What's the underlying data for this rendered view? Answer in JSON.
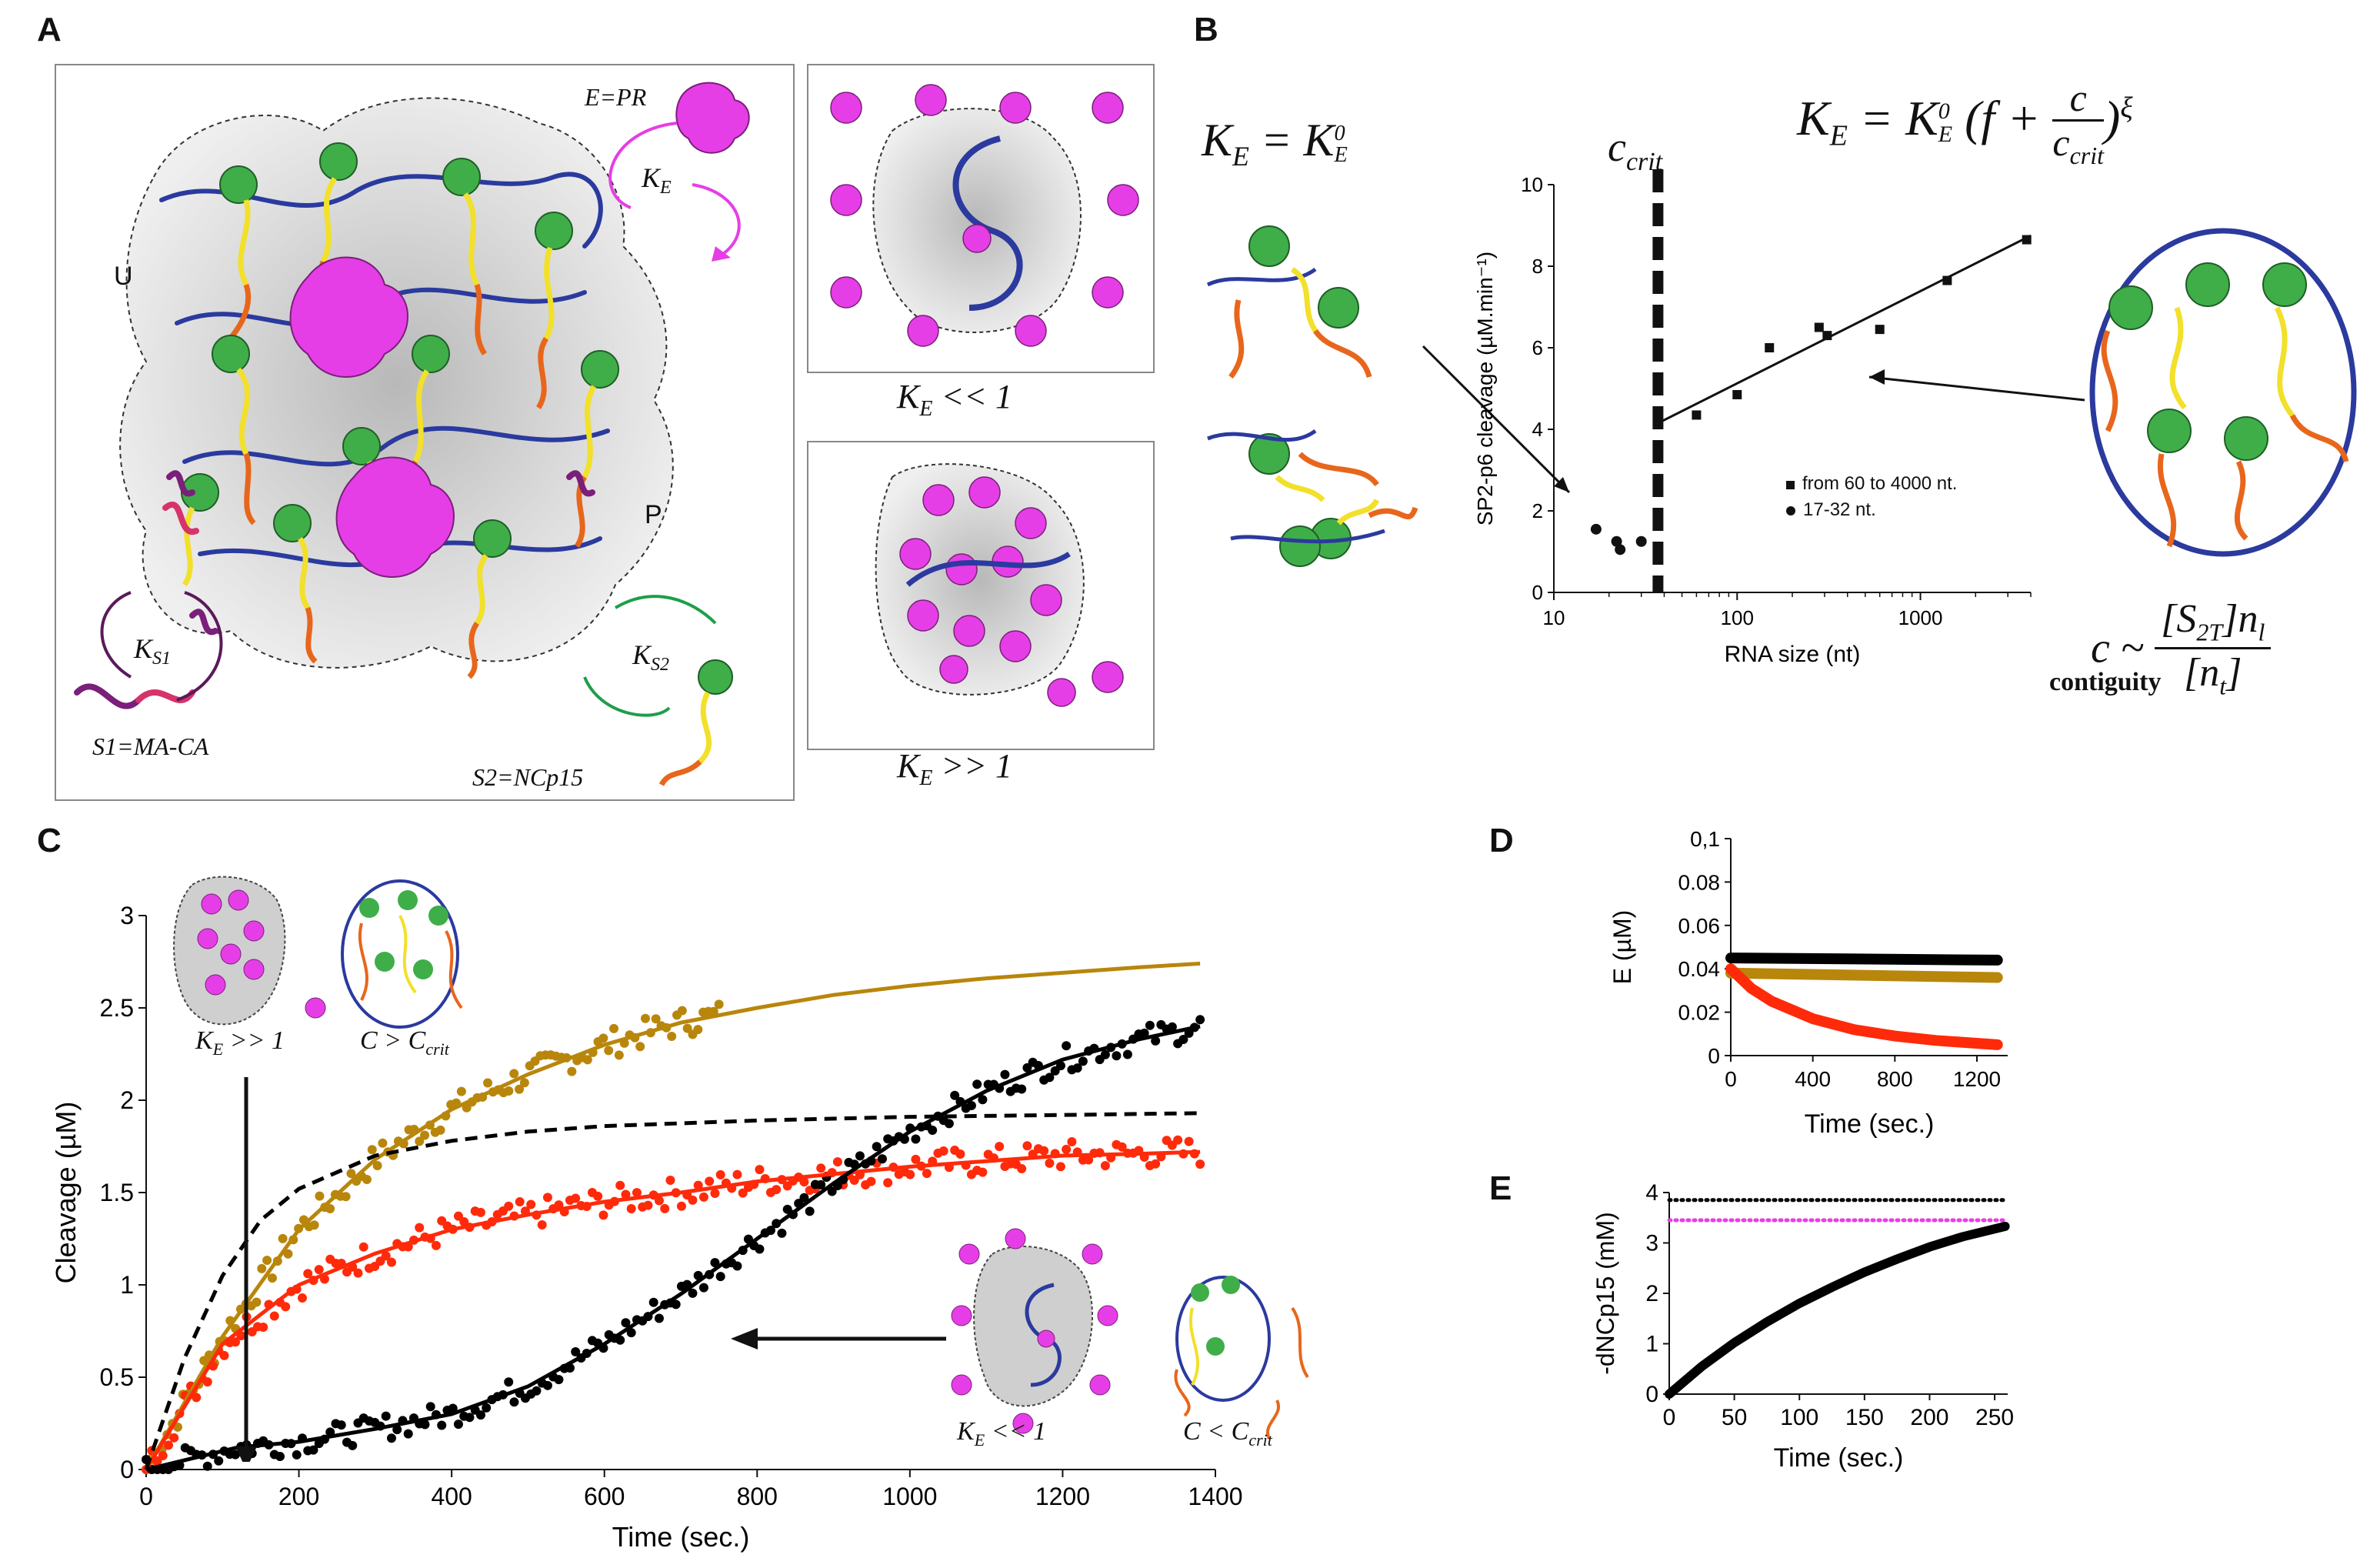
{
  "panels": {
    "A": "A",
    "B": "B",
    "C": "C",
    "D": "D",
    "E": "E"
  },
  "colors": {
    "magenta": "#e63ee6",
    "green": "#3fae49",
    "blue": "#2b3a9e",
    "orange": "#e8661c",
    "yellow": "#f2e02a",
    "purple": "#7a1f7a",
    "gold": "#b8860b",
    "red": "#ff2a0a",
    "black": "#000000",
    "gray": "#d9d9d9"
  },
  "panelA": {
    "state_U": "U",
    "state_P": "P",
    "enzyme_label": "E=PR",
    "ke_label": "K",
    "ke_sub": "E",
    "ks1_label": "K",
    "ks1_sub": "S1",
    "ks2_label": "K",
    "ks2_sub": "S2",
    "s1_label": "S1=MA-CA",
    "s2_label": "S2=NCp15",
    "ke_small_k": "K",
    "ke_small_sub": "E",
    "ke_small_rel": "<< 1",
    "ke_big_k": "K",
    "ke_big_sub": "E",
    "ke_big_rel": ">> 1"
  },
  "panelB": {
    "eq_left_lhs": "K",
    "eq_left_lhs_sub": "E",
    "eq_left_rhs": "= K",
    "eq_left_rhs_sup": "0",
    "eq_left_rhs_sub": "E",
    "eq_right": "K",
    "eq_right_sub": "E",
    "eq_right_rhs": "= K",
    "eq_right_sup": "0",
    "eq_right_rsub": "E",
    "eq_right_paren": "(f +",
    "eq_right_num": "c",
    "eq_right_den": "c",
    "eq_right_den_sub": "crit",
    "eq_right_close": ")",
    "eq_right_exp": "ξ",
    "ccrit": "c",
    "ccrit_sub": "crit",
    "contig_lhs": "c ~",
    "contig_num": "[S",
    "contig_num_sub": "2T",
    "contig_num_rest": "]n",
    "contig_num_sub2": "l",
    "contig_den": "[n",
    "contig_den_sub": "t",
    "contig_den_close": "]",
    "contig_word": "contiguity",
    "ylabel": "SP2-p6 cleavage (µM.min⁻¹)",
    "xlabel": "RNA size (nt)",
    "legend_sq": "from 60 to 4000 nt.",
    "legend_dot": "17-32 nt."
  },
  "panelC": {
    "ylabel": "Cleavage (µM)",
    "xlabel": "Time (sec.)",
    "ke_big_k": "K",
    "ke_big_sub": "E",
    "ke_big_rel": ">> 1",
    "c_big": "C > C",
    "c_big_sub": "crit",
    "ke_small_k": "K",
    "ke_small_sub": "E",
    "ke_small_rel": "<< 1",
    "c_small": "C < C",
    "c_small_sub": "crit"
  },
  "panelD": {
    "ylabel": "E (µM)",
    "xlabel": "Time (sec.)"
  },
  "panelE": {
    "ylabel": "-dNCp15 (mM)",
    "xlabel": "Time (sec.)"
  },
  "chart_data": [
    {
      "id": "B",
      "type": "scatter",
      "xscale": "log",
      "xlim": [
        10,
        4000
      ],
      "ylim": [
        0,
        10
      ],
      "xticks": [
        10,
        100,
        1000
      ],
      "xtick_labels": [
        "10",
        "100",
        "1000"
      ],
      "yticks": [
        0,
        2,
        4,
        6,
        8,
        10
      ],
      "ytick_labels": [
        "0",
        "2",
        "4",
        "6",
        "8",
        "10"
      ],
      "xlabel": "RNA size (nt)",
      "ylabel": "SP2-p6 cleavage (µM.min⁻¹)",
      "series": [
        {
          "name": "from 60 to 4000 nt.",
          "marker": "square",
          "x": [
            60,
            100,
            150,
            280,
            310,
            600,
            1400,
            3800
          ],
          "y": [
            4.35,
            4.85,
            6.0,
            6.5,
            6.3,
            6.45,
            7.65,
            8.65
          ]
        },
        {
          "name": "17-32 nt.",
          "marker": "circle",
          "x": [
            17,
            22,
            23,
            30
          ],
          "y": [
            1.55,
            1.25,
            1.05,
            1.25
          ]
        }
      ],
      "fit_line": {
        "x": [
          37,
          4000
        ],
        "y": [
          4.15,
          8.75
        ]
      },
      "ccrit_x": 37
    },
    {
      "id": "C",
      "type": "line",
      "xlim": [
        0,
        1400
      ],
      "ylim": [
        0,
        3
      ],
      "xticks": [
        0,
        200,
        400,
        600,
        800,
        1000,
        1200,
        1400
      ],
      "xtick_labels": [
        "0",
        "200",
        "400",
        "600",
        "800",
        "1000",
        "1200",
        "1400"
      ],
      "yticks": [
        0,
        0.5,
        1,
        1.5,
        2,
        2.5,
        3
      ],
      "ytick_labels": [
        "0",
        "0.5",
        "1",
        "1.5",
        "2",
        "2.5",
        "3"
      ],
      "xlabel": "Time (sec.)",
      "ylabel": "Cleavage (µM)",
      "series": [
        {
          "name": "gold fit",
          "color": "#b8860b",
          "style": "solid",
          "x": [
            0,
            100,
            200,
            300,
            400,
            500,
            600,
            700,
            800,
            900,
            1000,
            1100,
            1200,
            1300,
            1380
          ],
          "y": [
            0,
            0.72,
            1.3,
            1.68,
            1.95,
            2.14,
            2.3,
            2.42,
            2.5,
            2.57,
            2.62,
            2.66,
            2.69,
            2.72,
            2.74
          ]
        },
        {
          "name": "red fit",
          "color": "#ff2a0a",
          "style": "solid",
          "x": [
            0,
            100,
            200,
            300,
            400,
            500,
            600,
            700,
            800,
            900,
            1000,
            1100,
            1200,
            1300,
            1380
          ],
          "y": [
            0,
            0.68,
            1.0,
            1.17,
            1.3,
            1.38,
            1.45,
            1.5,
            1.56,
            1.6,
            1.64,
            1.67,
            1.7,
            1.71,
            1.72
          ]
        },
        {
          "name": "black fit",
          "color": "#000000",
          "style": "solid",
          "x": [
            0,
            60,
            120,
            200,
            300,
            400,
            500,
            600,
            700,
            800,
            900,
            1000,
            1100,
            1200,
            1300,
            1380
          ],
          "y": [
            0,
            0.06,
            0.12,
            0.15,
            0.22,
            0.3,
            0.45,
            0.68,
            0.95,
            1.25,
            1.55,
            1.83,
            2.05,
            2.22,
            2.33,
            2.4
          ]
        },
        {
          "name": "dashed model",
          "color": "#000000",
          "style": "dashed",
          "x": [
            0,
            50,
            100,
            150,
            200,
            300,
            400,
            500,
            600,
            800,
            1000,
            1200,
            1380
          ],
          "y": [
            0,
            0.6,
            1.05,
            1.35,
            1.52,
            1.7,
            1.78,
            1.83,
            1.86,
            1.89,
            1.91,
            1.92,
            1.93
          ]
        }
      ],
      "scatter_note": "noisy experimental points scattered around each solid fit; gold measured to ~750 s"
    },
    {
      "id": "D",
      "type": "line",
      "xlim": [
        0,
        1350
      ],
      "ylim": [
        0,
        0.1
      ],
      "xticks": [
        0,
        400,
        800,
        1200
      ],
      "xtick_labels": [
        "0",
        "400",
        "800",
        "1200"
      ],
      "yticks": [
        0,
        0.02,
        0.04,
        0.06,
        0.08,
        0.1
      ],
      "ytick_labels": [
        "0",
        "0.02",
        "0.04",
        "0.06",
        "0.08",
        "0,1"
      ],
      "xlabel": "Time (sec.)",
      "ylabel": "E (µM)",
      "series": [
        {
          "name": "black",
          "color": "#000000",
          "x": [
            0,
            1300
          ],
          "y": [
            0.045,
            0.044
          ]
        },
        {
          "name": "gold",
          "color": "#b8860b",
          "x": [
            0,
            1300
          ],
          "y": [
            0.038,
            0.036
          ]
        },
        {
          "name": "red",
          "color": "#ff2a0a",
          "x": [
            0,
            100,
            200,
            400,
            600,
            800,
            1000,
            1300
          ],
          "y": [
            0.04,
            0.031,
            0.025,
            0.017,
            0.012,
            0.009,
            0.007,
            0.005
          ]
        }
      ]
    },
    {
      "id": "E",
      "type": "line",
      "xlim": [
        0,
        260
      ],
      "ylim": [
        0,
        4
      ],
      "xticks": [
        0,
        50,
        100,
        150,
        200,
        250
      ],
      "xtick_labels": [
        "0",
        "50",
        "100",
        "150",
        "200",
        "250"
      ],
      "yticks": [
        0,
        1,
        2,
        3,
        4
      ],
      "ytick_labels": [
        "0",
        "1",
        "2",
        "3",
        "4"
      ],
      "xlabel": "Time (sec.)",
      "ylabel": "-dNCp15 (mM)",
      "series": [
        {
          "name": "black dotted",
          "color": "#000000",
          "style": "dotted",
          "x": [
            0,
            260
          ],
          "y": [
            3.85,
            3.85
          ]
        },
        {
          "name": "magenta dotted",
          "color": "#e63ee6",
          "style": "dotted",
          "x": [
            0,
            260
          ],
          "y": [
            3.45,
            3.45
          ]
        },
        {
          "name": "black curve",
          "color": "#000000",
          "style": "solid",
          "x": [
            0,
            25,
            50,
            75,
            100,
            125,
            150,
            175,
            200,
            225,
            258
          ],
          "y": [
            0,
            0.55,
            1.02,
            1.43,
            1.8,
            2.12,
            2.42,
            2.68,
            2.92,
            3.12,
            3.33
          ]
        }
      ]
    }
  ]
}
